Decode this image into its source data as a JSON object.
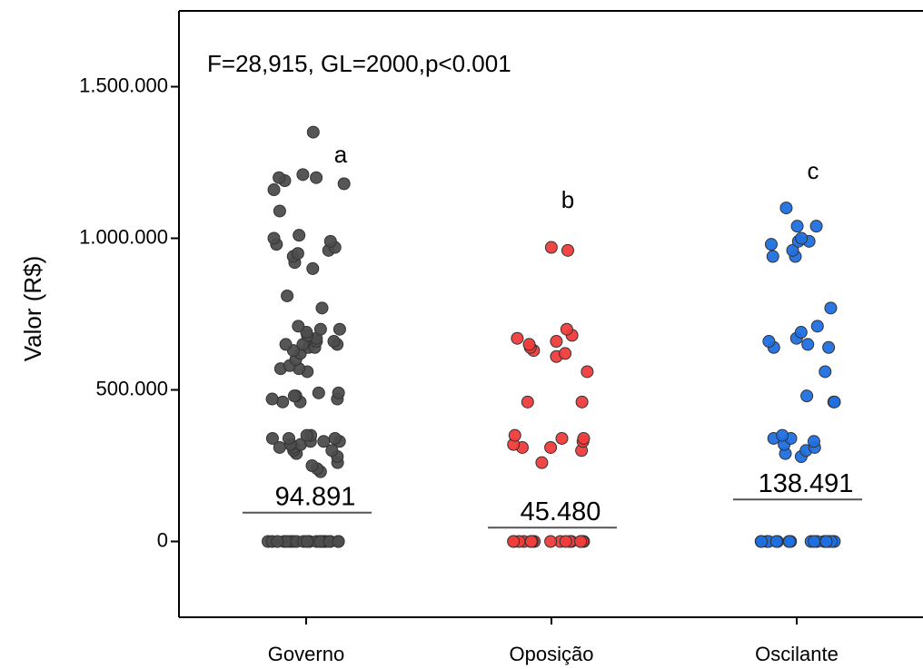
{
  "chart_data": {
    "type": "strip",
    "ylabel": "Valor (R$)",
    "annotation": "F=28,915, GL=2000,p<0.001",
    "categories": [
      "Governo",
      "Oposição",
      "Oscilante"
    ],
    "ylim": [
      -250000,
      1750000
    ],
    "yticks": [
      0,
      {
        "value": 500000,
        "label": "500.000"
      },
      {
        "value": 1000000,
        "label": "1.000.000"
      },
      {
        "value": 1500000,
        "label": "1.500.000"
      }
    ],
    "series": [
      {
        "color": "#4d4d4d",
        "values": [
          0,
          0,
          0,
          0,
          0,
          0,
          0,
          0,
          0,
          0,
          0,
          0,
          0,
          0,
          0,
          0,
          0,
          0,
          0,
          0,
          0,
          0,
          0,
          0,
          0,
          230000,
          240000,
          250000,
          260000,
          280000,
          290000,
          300000,
          300000,
          310000,
          310000,
          320000,
          320000,
          320000,
          330000,
          330000,
          330000,
          340000,
          340000,
          340000,
          350000,
          350000,
          460000,
          460000,
          470000,
          470000,
          480000,
          480000,
          490000,
          490000,
          560000,
          570000,
          570000,
          580000,
          600000,
          620000,
          630000,
          640000,
          640000,
          650000,
          650000,
          650000,
          660000,
          660000,
          670000,
          680000,
          690000,
          700000,
          700000,
          710000,
          770000,
          810000,
          900000,
          920000,
          940000,
          950000,
          960000,
          970000,
          980000,
          990000,
          1000000,
          1010000,
          1090000,
          1160000,
          1180000,
          1190000,
          1200000,
          1200000,
          1210000,
          1350000
        ],
        "mean": 94891,
        "mean_label": "94.891",
        "letter": "a"
      },
      {
        "color": "#f03c3c",
        "values": [
          0,
          0,
          0,
          0,
          0,
          0,
          0,
          0,
          0,
          0,
          0,
          0,
          0,
          0,
          0,
          0,
          0,
          0,
          0,
          0,
          260000,
          300000,
          310000,
          310000,
          320000,
          330000,
          340000,
          340000,
          350000,
          460000,
          460000,
          560000,
          610000,
          620000,
          630000,
          640000,
          650000,
          660000,
          670000,
          680000,
          700000,
          960000,
          970000
        ],
        "mean": 45480,
        "mean_label": "45.480",
        "letter": "b"
      },
      {
        "color": "#1f6fe0",
        "values": [
          0,
          0,
          0,
          0,
          0,
          0,
          0,
          0,
          0,
          0,
          0,
          0,
          0,
          0,
          0,
          0,
          0,
          0,
          0,
          0,
          280000,
          290000,
          300000,
          310000,
          320000,
          330000,
          340000,
          340000,
          350000,
          460000,
          460000,
          480000,
          560000,
          640000,
          640000,
          650000,
          660000,
          670000,
          690000,
          710000,
          770000,
          940000,
          940000,
          960000,
          980000,
          990000,
          990000,
          1000000,
          1040000,
          1040000,
          1100000
        ],
        "mean": 138491,
        "mean_label": "138.491",
        "letter": "c"
      }
    ]
  }
}
